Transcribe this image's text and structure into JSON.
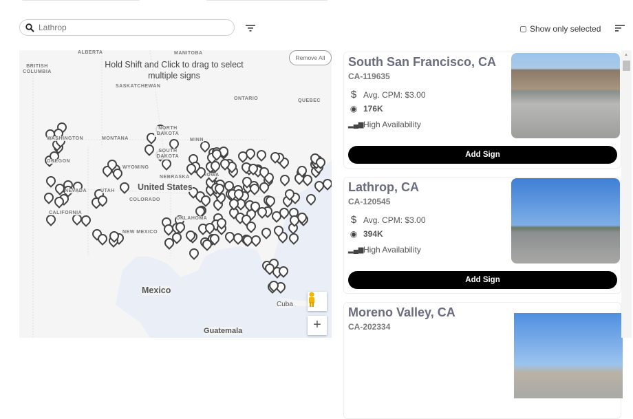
{
  "search": {
    "placeholder": "Lathrop",
    "icon": "search-icon"
  },
  "filter_icon": "filter-icon",
  "show_only_selected": {
    "label": "Show only selected",
    "checked": false
  },
  "sort_icon": "sort-icon",
  "map": {
    "hint": "Hold Shift and Click to drag to select multiple signs",
    "remove_all": "Remove All",
    "labels": {
      "alberta": "ALBERTA",
      "manitoba": "MANITOBA",
      "british_columbia": "BRITISH COLUMBIA",
      "saskatchewan": "SASKATCHEWAN",
      "ontario": "ONTARIO",
      "quebec": "QUEBEC",
      "washington": "WASHINGTON",
      "montana": "MONTANA",
      "north_dakota": "NORTH DAKOTA",
      "minnesota": "MINN",
      "oregon": "OREGON",
      "south_dakota": "SOUTH DAKOTA",
      "wyoming": "WYOMING",
      "nebraska": "NEBRASKA",
      "iowa": "IOWA",
      "nevada": "NEVADA",
      "utah": "UTAH",
      "united_states": "United States",
      "colorado": "COLORADO",
      "california": "CALIFORNIA",
      "new_mexico": "NEW MEXICO",
      "oklahoma": "OKLAHOMA",
      "mexico": "Mexico",
      "cuba": "Cuba",
      "guatemala": "Guatemala"
    },
    "zoom_in": "+"
  },
  "cards": [
    {
      "title": "South San Francisco, CA",
      "code": "CA-119635",
      "cpm": "Avg. CPM: $3.00",
      "impressions": "176K",
      "availability": "High Availability",
      "button": "Add Sign"
    },
    {
      "title": "Lathrop, CA",
      "code": "CA-120545",
      "cpm": "Avg. CPM: $3.00",
      "impressions": "394K",
      "availability": "High Availability",
      "button": "Add Sign"
    },
    {
      "title": "Moreno Valley, CA",
      "code": "CA-202334"
    }
  ]
}
